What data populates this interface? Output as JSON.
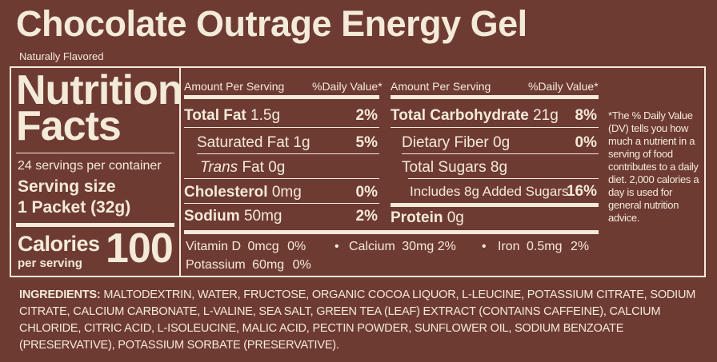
{
  "product": {
    "title": "Chocolate Outrage Energy Gel",
    "subtitle": "Naturally Flavored"
  },
  "facts": {
    "heading_1": "Nutrition",
    "heading_2": "Facts",
    "servings": "24 servings per container",
    "serving_size_label": "Serving size",
    "serving_size_value": "1 Packet (32g)",
    "calories_label": "Calories",
    "calories_sub": "per serving",
    "calories_value": "100"
  },
  "col1": {
    "hdr_left": "Amount Per Serving",
    "hdr_right": "%Daily Value*",
    "total_fat": {
      "name": "Total Fat",
      "amount": "1.5g",
      "dv": "2%"
    },
    "sat_fat": {
      "name": "Saturated Fat",
      "amount": "1g",
      "dv": "5%"
    },
    "trans_fat": {
      "name_italic": "Trans",
      "name": "Fat",
      "amount": "0g"
    },
    "cholesterol": {
      "name": "Cholesterol",
      "amount": "0mg",
      "dv": "0%"
    },
    "sodium": {
      "name": "Sodium",
      "amount": "50mg",
      "dv": "2%"
    }
  },
  "col2": {
    "hdr_left": "Amount Per Serving",
    "hdr_right": "%Daily Value*",
    "total_carb": {
      "name": "Total Carbohydrate",
      "amount": "21g",
      "dv": "8%"
    },
    "fiber": {
      "name": "Dietary Fiber",
      "amount": "0g",
      "dv": "0%"
    },
    "sugars": {
      "name": "Total Sugars",
      "amount": "8g"
    },
    "added": {
      "name": "Includes 8g Added Sugars",
      "dv": "16%"
    },
    "protein": {
      "name": "Protein",
      "amount": "0g"
    }
  },
  "vitamins": {
    "vitd": {
      "name": "Vitamin D",
      "amount": "0mcg",
      "dv": "0%"
    },
    "calcium": {
      "name": "Calcium",
      "amount": "30mg",
      "dv": "2%"
    },
    "iron": {
      "name": "Iron",
      "amount": "0.5mg",
      "dv": "2%"
    },
    "potassium": {
      "name": "Potassium",
      "amount": "60mg",
      "dv": "0%"
    },
    "bullet": "•"
  },
  "footnote": "*The % Daily Value (DV) tells you how much a nutrient in a serving of food contributes to a daily diet. 2,000 calories a day is used for general nutrition advice.",
  "ingredients": {
    "label": "INGREDIENTS:",
    "text": "MALTODEXTRIN, WATER, FRUCTOSE, ORGANIC COCOA LIQUOR, L-LEUCINE, POTASSIUM CITRATE, SODIUM CITRATE, CALCIUM CARBONATE, L-VALINE, SEA SALT, GREEN TEA (LEAF) EXTRACT (CONTAINS CAFFEINE), CALCIUM CHLORIDE, CITRIC ACID, L-ISOLEUCINE, MALIC ACID, PECTIN POWDER, SUNFLOWER OIL, SODIUM BENZOATE (PRESERVATIVE), POTASSIUM SORBATE (PRESERVATIVE)."
  },
  "colors": {
    "background": "#6e3b32",
    "text": "#f4ead8"
  }
}
